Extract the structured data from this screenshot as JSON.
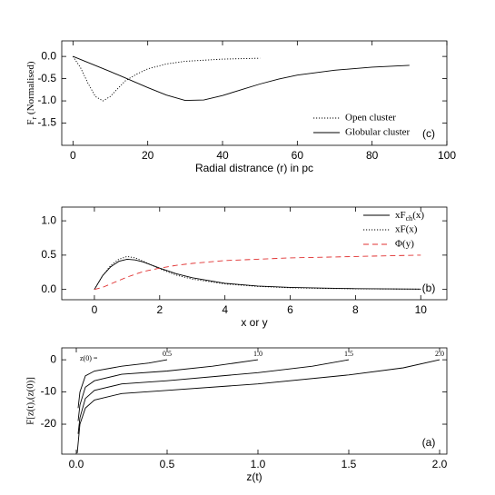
{
  "chart_data": [
    {
      "type": "line",
      "label": "(c)",
      "xlabel": "Radial distrance (r) in pc",
      "ylabel": [
        "F",
        "r",
        " (Normalised)"
      ],
      "xlim": [
        -3,
        100
      ],
      "ylim": [
        -2,
        0.35
      ],
      "xticks": [
        0,
        20,
        40,
        60,
        80,
        100
      ],
      "yticks": [
        {
          "value": 0,
          "label": "0.0"
        },
        {
          "value": -0.5,
          "label": "-0.5"
        },
        {
          "value": -1,
          "label": "-1.0"
        },
        {
          "value": -1.5,
          "label": "-1.5"
        }
      ],
      "legend": "lower right",
      "series": [
        {
          "name": "Open cluster",
          "color": "#000000",
          "dash": "dotted",
          "x": [
            0,
            2,
            4,
            6,
            8,
            10,
            12,
            14,
            17,
            20,
            25,
            30,
            40,
            50
          ],
          "values": [
            0,
            -0.25,
            -0.6,
            -0.9,
            -1.0,
            -0.9,
            -0.72,
            -0.55,
            -0.4,
            -0.28,
            -0.17,
            -0.11,
            -0.06,
            -0.04
          ]
        },
        {
          "name": "Globular cluster",
          "color": "#000000",
          "dash": "solid",
          "x": [
            0,
            5,
            10,
            15,
            20,
            25,
            30,
            35,
            40,
            45,
            50,
            55,
            60,
            70,
            80,
            90
          ],
          "values": [
            0,
            -0.17,
            -0.34,
            -0.52,
            -0.7,
            -0.87,
            -0.99,
            -0.98,
            -0.88,
            -0.75,
            -0.62,
            -0.51,
            -0.42,
            -0.31,
            -0.24,
            -0.2
          ]
        }
      ]
    },
    {
      "type": "line",
      "label": "(b)",
      "xlabel": "x or y",
      "xlim": [
        -1,
        10.8
      ],
      "ylim": [
        -0.15,
        1.2
      ],
      "xticks": [
        0,
        2,
        4,
        6,
        8,
        10
      ],
      "yticks": [
        {
          "value": 0,
          "label": "0.0"
        },
        {
          "value": 0.5,
          "label": "0.5"
        },
        {
          "value": 1,
          "label": "1.0"
        }
      ],
      "legend": "upper right",
      "x": [
        0,
        0.25,
        0.5,
        0.75,
        1,
        1.25,
        1.5,
        2,
        2.5,
        3,
        4,
        5,
        6,
        7,
        8,
        9,
        10
      ],
      "series": [
        {
          "name": [
            "xF",
            "ch",
            "(x)"
          ],
          "color": "#000000",
          "dash": "solid",
          "values": [
            0,
            0.2,
            0.33,
            0.41,
            0.44,
            0.43,
            0.4,
            0.31,
            0.23,
            0.17,
            0.09,
            0.05,
            0.03,
            0.02,
            0.012,
            0.008,
            0.005
          ]
        },
        {
          "name": "xF(x)",
          "color": "#000000",
          "dash": "dotted",
          "values": [
            0,
            0.2,
            0.35,
            0.44,
            0.48,
            0.46,
            0.41,
            0.3,
            0.21,
            0.15,
            0.08,
            0.045,
            0.025,
            0.015,
            0.01,
            0.006,
            0.004
          ]
        },
        {
          "name": "Φ(y)",
          "color": "#e03030",
          "dash": "dashed",
          "values": [
            0,
            0.03,
            0.08,
            0.13,
            0.18,
            0.22,
            0.26,
            0.31,
            0.35,
            0.38,
            0.42,
            0.44,
            0.46,
            0.47,
            0.48,
            0.49,
            0.5
          ]
        }
      ]
    },
    {
      "type": "line",
      "label": "(a)",
      "xlabel": "z(t)",
      "ylabel": "F[z(t),(z(0)]",
      "annotation": "z(0) =",
      "xlim": [
        -0.08,
        2.04
      ],
      "ylim": [
        -29.3,
        3.7
      ],
      "xticks": [
        {
          "value": 0,
          "label": "0.0"
        },
        {
          "value": 0.5,
          "label": "0.5"
        },
        {
          "value": 1,
          "label": "1.0"
        },
        {
          "value": 1.5,
          "label": "1.5"
        },
        {
          "value": 2,
          "label": "2.0"
        }
      ],
      "yticks": [
        0,
        -10,
        -20
      ],
      "series": [
        {
          "name": "0.5",
          "color": "#000000",
          "dash": "solid",
          "x": [
            0.01,
            0.02,
            0.05,
            0.1,
            0.25,
            0.4,
            0.5
          ],
          "values": [
            -15,
            -10,
            -5,
            -3.5,
            -2,
            -1,
            0
          ]
        },
        {
          "name": "1.0",
          "color": "#000000",
          "dash": "solid",
          "x": [
            0.01,
            0.02,
            0.05,
            0.1,
            0.25,
            0.5,
            0.75,
            1.0
          ],
          "values": [
            -19,
            -14,
            -8.5,
            -6.5,
            -4.5,
            -3.5,
            -2,
            0
          ]
        },
        {
          "name": "1.5",
          "color": "#000000",
          "dash": "solid",
          "x": [
            0.01,
            0.02,
            0.05,
            0.1,
            0.25,
            0.5,
            1.0,
            1.3,
            1.5
          ],
          "values": [
            -23,
            -18,
            -12,
            -9.5,
            -7.5,
            -6.5,
            -4,
            -2,
            0
          ]
        },
        {
          "name": "2.0",
          "color": "#000000",
          "dash": "solid",
          "x": [
            0.005,
            0.02,
            0.05,
            0.1,
            0.25,
            0.5,
            1.0,
            1.5,
            1.8,
            2.0
          ],
          "values": [
            -29,
            -20,
            -15,
            -12.5,
            -10.5,
            -9.5,
            -7.5,
            -4.7,
            -2.5,
            0
          ]
        }
      ]
    }
  ]
}
